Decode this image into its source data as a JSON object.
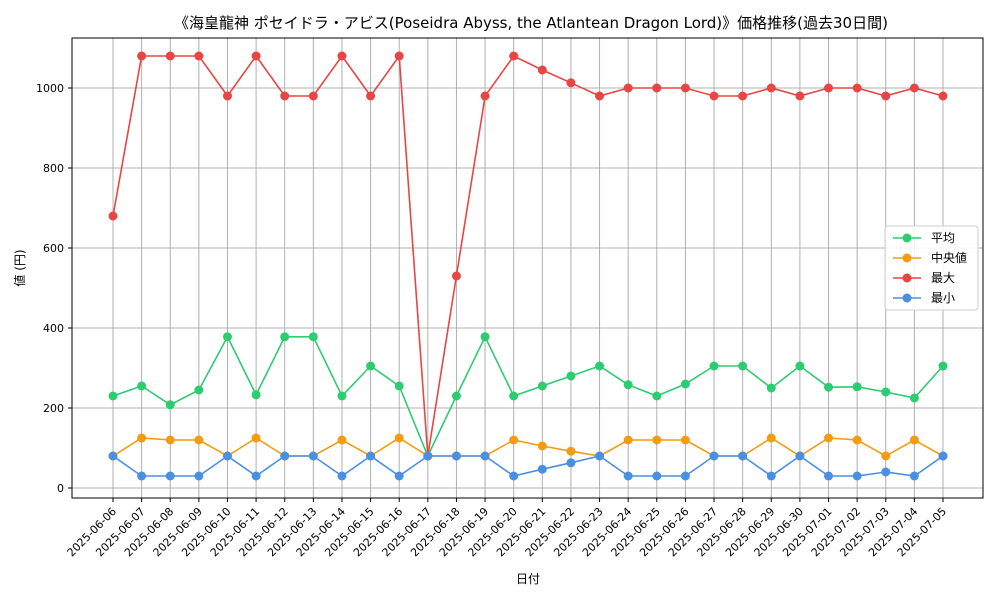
{
  "chart_data": {
    "type": "line",
    "title": "《海皇龍神 ポセイドラ・アビス(Poseidra Abyss, the Atlantean Dragon Lord)》価格推移(過去30日間)",
    "xlabel": "日付",
    "ylabel": "値 (円)",
    "ylim": [
      -25,
      1125
    ],
    "yticks": [
      0,
      200,
      400,
      600,
      800,
      1000
    ],
    "grid": true,
    "legend_position": "center-right",
    "categories": [
      "2025-06-06",
      "2025-06-07",
      "2025-06-08",
      "2025-06-09",
      "2025-06-10",
      "2025-06-11",
      "2025-06-12",
      "2025-06-13",
      "2025-06-14",
      "2025-06-15",
      "2025-06-16",
      "2025-06-17",
      "2025-06-18",
      "2025-06-19",
      "2025-06-20",
      "2025-06-21",
      "2025-06-22",
      "2025-06-23",
      "2025-06-24",
      "2025-06-25",
      "2025-06-26",
      "2025-06-27",
      "2025-06-28",
      "2025-06-29",
      "2025-06-30",
      "2025-07-01",
      "2025-07-02",
      "2025-07-03",
      "2025-07-04",
      "2025-07-05"
    ],
    "series": [
      {
        "name": "平均",
        "color": "#2ecc71",
        "values": [
          230,
          255,
          208,
          245,
          378,
          233,
          378,
          378,
          230,
          305,
          255,
          80,
          230,
          378,
          230,
          255,
          280,
          305,
          258,
          230,
          260,
          305,
          305,
          250,
          305,
          252,
          253,
          240,
          225,
          305
        ]
      },
      {
        "name": "中央値",
        "color": "#f39c12",
        "values": [
          80,
          125,
          120,
          120,
          80,
          125,
          80,
          80,
          120,
          80,
          125,
          80,
          80,
          80,
          120,
          105,
          92,
          80,
          120,
          120,
          120,
          80,
          80,
          125,
          80,
          125,
          120,
          80,
          120,
          80
        ]
      },
      {
        "name": "最大",
        "color": "#e84545",
        "values": [
          680,
          1080,
          1080,
          1080,
          980,
          1080,
          980,
          980,
          1080,
          980,
          1080,
          80,
          530,
          980,
          1080,
          1045,
          1013,
          980,
          1000,
          1000,
          1000,
          980,
          980,
          1000,
          980,
          1000,
          1000,
          980,
          1000,
          980
        ]
      },
      {
        "name": "最小",
        "color": "#4a90e2",
        "values": [
          80,
          30,
          30,
          30,
          80,
          30,
          80,
          80,
          30,
          80,
          30,
          80,
          80,
          80,
          30,
          47,
          63,
          80,
          30,
          30,
          30,
          80,
          80,
          30,
          80,
          30,
          30,
          40,
          30,
          80
        ]
      }
    ]
  }
}
